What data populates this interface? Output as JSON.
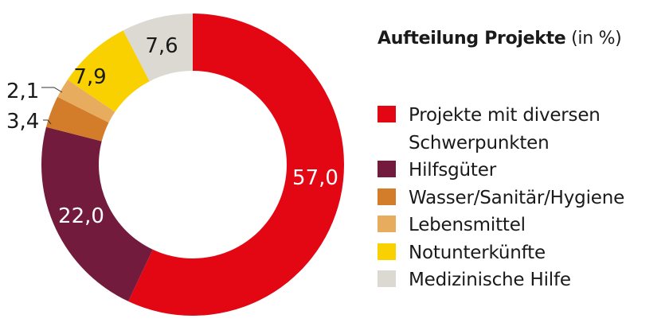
{
  "chart_data": {
    "type": "pie",
    "donut": true,
    "title": "Aufteilung Projekte",
    "title_unit": "(in %)",
    "legend_position": "right",
    "categories": [
      "Projekte mit diversen Schwerpunkten",
      "Hilfsgüter",
      "Wasser/Sanitär/Hygiene",
      "Lebensmittel",
      "Notunterkünfte",
      "Medizinische Hilfe"
    ],
    "values": [
      57.0,
      22.0,
      3.4,
      2.1,
      7.9,
      7.6
    ],
    "value_labels": [
      "57,0",
      "22,0",
      "3,4",
      "2,1",
      "7,9",
      "7,6"
    ],
    "colors": [
      "#e30613",
      "#731b3c",
      "#d37c29",
      "#e8ac5e",
      "#f9d000",
      "#dcd8d2"
    ],
    "label_colors": [
      "#ffffff",
      "#ffffff",
      "#1a1a1a",
      "#1a1a1a",
      "#1a1a1a",
      "#1a1a1a"
    ]
  },
  "title": {
    "bold": "Aufteilung Projekte",
    "unit": "(in %)"
  },
  "legend": [
    {
      "label": "Projekte mit diversen\nSchwerpunkten",
      "color": "#e30613"
    },
    {
      "label": "Hilfsgüter",
      "color": "#731b3c"
    },
    {
      "label": "Wasser/Sanitär/Hygiene",
      "color": "#d37c29"
    },
    {
      "label": "Lebensmittel",
      "color": "#e8ac5e"
    },
    {
      "label": "Notunterkünfte",
      "color": "#f9d000"
    },
    {
      "label": "Medizinische Hilfe",
      "color": "#dcd8d2"
    }
  ]
}
